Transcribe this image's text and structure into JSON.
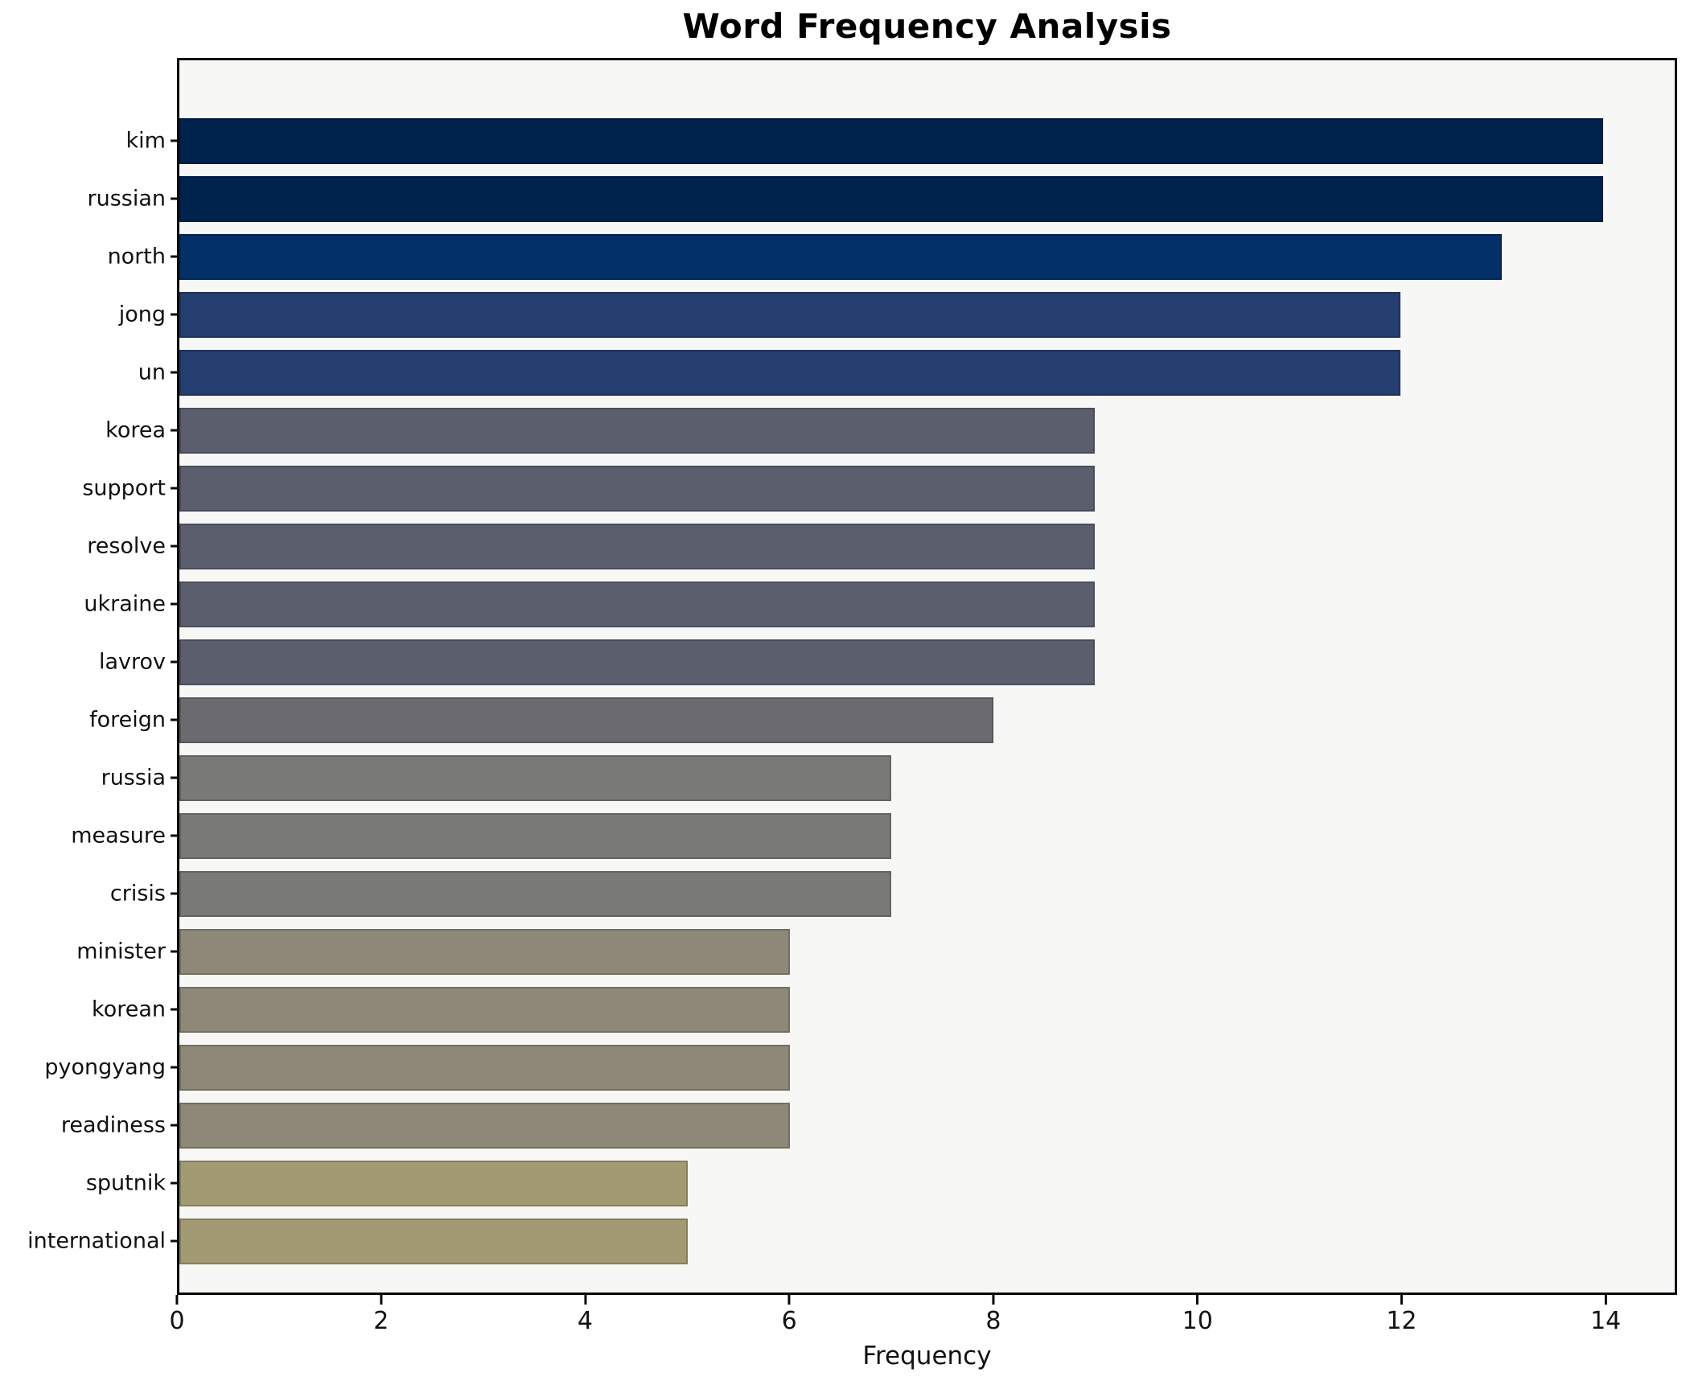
{
  "title": "Word Frequency Analysis",
  "xlabel": "Frequency",
  "plot_background": "#f7f7f5",
  "spine_color": "#0a0a0a",
  "chart_data": {
    "type": "bar",
    "orientation": "horizontal",
    "title": "Word Frequency Analysis",
    "xlabel": "Frequency",
    "ylabel": "",
    "categories": [
      "kim",
      "russian",
      "north",
      "jong",
      "un",
      "korea",
      "support",
      "resolve",
      "ukraine",
      "lavrov",
      "foreign",
      "russia",
      "measure",
      "crisis",
      "minister",
      "korean",
      "pyongyang",
      "readiness",
      "sputnik",
      "international"
    ],
    "values": [
      14,
      14,
      13,
      12,
      12,
      9,
      9,
      9,
      9,
      9,
      8,
      7,
      7,
      7,
      6,
      6,
      6,
      6,
      5,
      5
    ],
    "bar_colors": [
      "#00234e",
      "#00234e",
      "#04306a",
      "#263e6f",
      "#263e6f",
      "#5b5f6d",
      "#5b5f6d",
      "#5b5f6d",
      "#5b5f6d",
      "#5b5f6d",
      "#6a6a70",
      "#797a75",
      "#797a75",
      "#797a75",
      "#8d8877",
      "#8d8877",
      "#8d8877",
      "#8d8877",
      "#a29a72",
      "#a29a72"
    ],
    "xticks": [
      0,
      2,
      4,
      6,
      8,
      10,
      12,
      14
    ],
    "xlim": [
      0,
      14.7
    ],
    "grid": false,
    "legend": null,
    "colormap": "cividis"
  }
}
